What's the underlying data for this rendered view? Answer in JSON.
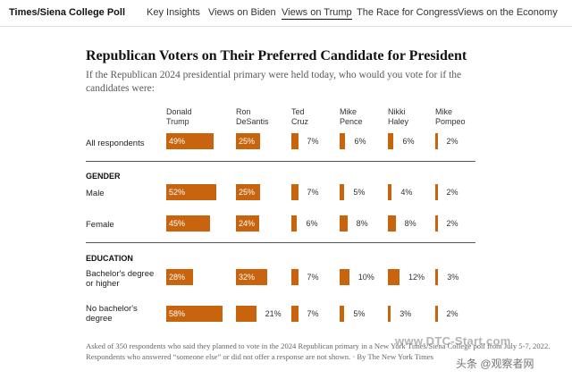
{
  "nav": {
    "brand": "Times/Siena College Poll",
    "items": [
      "Key Insights",
      "Views on Biden",
      "Views on Trump",
      "The Race for Congress",
      "Views on the Economy"
    ],
    "active": "Views on Trump"
  },
  "title": "Republican Voters on Their Preferred Candidate for President",
  "subtitle": "If the Republican 2024 presidential primary were held today, who would you vote for if the candidates were:",
  "columns": [
    {
      "line1": "Donald",
      "line2": "Trump"
    },
    {
      "line1": "Ron",
      "line2": "DeSantis"
    },
    {
      "line1": "Ted",
      "line2": "Cruz"
    },
    {
      "line1": "Mike",
      "line2": "Pence"
    },
    {
      "line1": "Nikki",
      "line2": "Haley"
    },
    {
      "line1": "Mike",
      "line2": "Pompeo"
    }
  ],
  "sections": {
    "gender": "GENDER",
    "education": "EDUCATION"
  },
  "rows": [
    {
      "label": "All respondents",
      "values": [
        "49%",
        "25%",
        "7%",
        "6%",
        "6%",
        "2%"
      ]
    },
    {
      "label": "Male",
      "values": [
        "52%",
        "25%",
        "7%",
        "5%",
        "4%",
        "2%"
      ]
    },
    {
      "label": "Female",
      "values": [
        "45%",
        "24%",
        "6%",
        "8%",
        "8%",
        "2%"
      ]
    },
    {
      "label": "Bachelor's degree or higher",
      "values": [
        "28%",
        "32%",
        "7%",
        "10%",
        "12%",
        "3%"
      ]
    },
    {
      "label": "No bachelor's degree",
      "values": [
        "58%",
        "21%",
        "7%",
        "5%",
        "3%",
        "2%"
      ]
    }
  ],
  "chart_data": {
    "type": "table",
    "title": "Republican Voters on Their Preferred Candidate for President",
    "categories": [
      "Donald Trump",
      "Ron DeSantis",
      "Ted Cruz",
      "Mike Pence",
      "Nikki Haley",
      "Mike Pompeo"
    ],
    "series": [
      {
        "name": "All respondents",
        "values": [
          49,
          25,
          7,
          6,
          6,
          2
        ]
      },
      {
        "name": "Male",
        "values": [
          52,
          25,
          7,
          5,
          4,
          2
        ]
      },
      {
        "name": "Female",
        "values": [
          45,
          24,
          6,
          8,
          8,
          2
        ]
      },
      {
        "name": "Bachelor's degree or higher",
        "values": [
          28,
          32,
          7,
          10,
          12,
          3
        ]
      },
      {
        "name": "No bachelor's degree",
        "values": [
          58,
          21,
          7,
          5,
          3,
          2
        ]
      }
    ],
    "unit": "%"
  },
  "colors": {
    "bar": "#c9640e"
  },
  "footnote": "Asked of 350 respondents who said they planned to vote in the 2024 Republican primary in a New York Times/Siena College poll from July 5-7, 2022. Respondents who answered “someone else” or did not offer a response are not shown. · By The New York Times",
  "watermark": {
    "site": "www.DTC-Start.com",
    "credit": "头条 @观察者网"
  }
}
